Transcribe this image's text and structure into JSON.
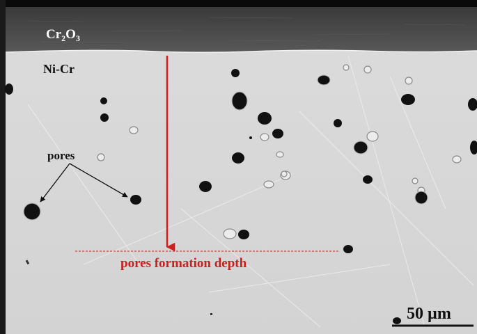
{
  "labels": {
    "oxide_layer": "Cr2O3",
    "oxide_base": "Cr",
    "oxide_sub1": "2",
    "oxide_mid": "O",
    "oxide_sub2": "3",
    "matrix": "Ni-Cr",
    "pores": "pores",
    "depth": "pores formation depth",
    "scale_bar": "50 µm"
  },
  "colors": {
    "oxide_layer": "#4a4a4a",
    "matrix": "#d8d8d8",
    "pore": "#111111",
    "arrow": "#cc1f1f",
    "text_dark": "#111111"
  }
}
